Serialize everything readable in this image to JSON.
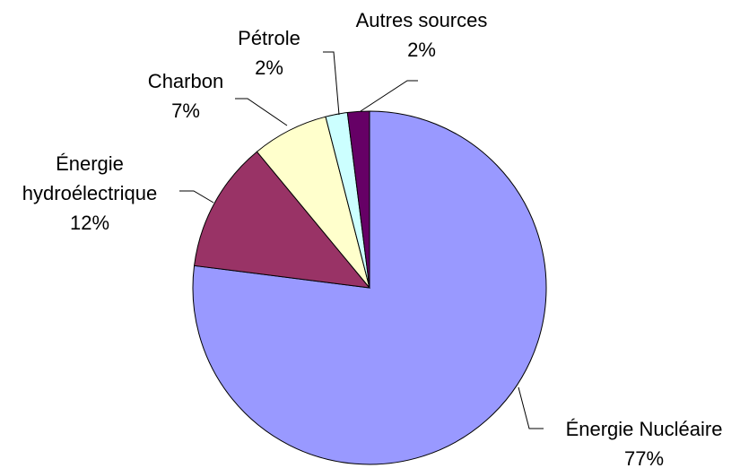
{
  "chart_data": {
    "type": "pie",
    "categories": [
      "Énergie Nucléaire",
      "Énergie hydroélectrique",
      "Charbon",
      "Pétrole",
      "Autres sources"
    ],
    "values": [
      77,
      12,
      7,
      2,
      2
    ],
    "value_labels": [
      "77%",
      "12%",
      "7%",
      "2%",
      "2%"
    ],
    "colors": [
      "#9999ff",
      "#993366",
      "#ffffcc",
      "#ccffff",
      "#660066"
    ]
  }
}
